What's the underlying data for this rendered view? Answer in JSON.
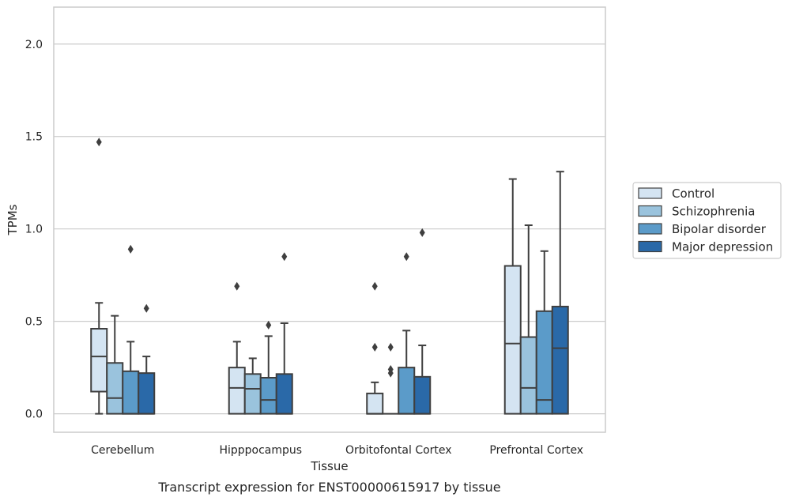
{
  "chart_data": {
    "type": "box",
    "xlabel": "Tissue",
    "ylabel": "TPMs",
    "caption": "Transcript expression for ENST00000615917 by tissue",
    "ylim": [
      -0.1,
      2.2
    ],
    "yticks": [
      "0.0",
      "0.5",
      "1.0",
      "1.5",
      "2.0"
    ],
    "ytick_values": [
      0,
      0.5,
      1.0,
      1.5,
      2.0
    ],
    "grid": "horizontal",
    "legend_position": "right",
    "categories": [
      "Cerebellum",
      "Hipppocampus",
      "Orbitofontal Cortex",
      "Prefrontal Cortex"
    ],
    "series": [
      {
        "name": "Control",
        "color": "#d4e4f2",
        "boxes": [
          {
            "whislo": 0.0,
            "q1": 0.12,
            "median": 0.31,
            "q3": 0.46,
            "whishi": 0.6,
            "fliers": [
              1.47
            ]
          },
          {
            "whislo": 0.0,
            "q1": 0.0,
            "median": 0.14,
            "q3": 0.25,
            "whishi": 0.39,
            "fliers": [
              0.69
            ]
          },
          {
            "whislo": 0.0,
            "q1": 0.0,
            "median": 0.0,
            "q3": 0.11,
            "whishi": 0.17,
            "fliers": [
              0.36,
              0.69
            ]
          },
          {
            "whislo": 0.0,
            "q1": 0.0,
            "median": 0.38,
            "q3": 0.8,
            "whishi": 1.27,
            "fliers": []
          }
        ]
      },
      {
        "name": "Schizophrenia",
        "color": "#9ac3dd",
        "boxes": [
          {
            "whislo": 0.0,
            "q1": 0.0,
            "median": 0.085,
            "q3": 0.275,
            "whishi": 0.53,
            "fliers": []
          },
          {
            "whislo": 0.0,
            "q1": 0.0,
            "median": 0.135,
            "q3": 0.215,
            "whishi": 0.3,
            "fliers": []
          },
          {
            "whislo": 0.0,
            "q1": 0.0,
            "median": 0.0,
            "q3": 0.0,
            "whishi": 0.0,
            "fliers": [
              0.22,
              0.24,
              0.36
            ]
          },
          {
            "whislo": 0.0,
            "q1": 0.0,
            "median": 0.14,
            "q3": 0.415,
            "whishi": 1.02,
            "fliers": []
          }
        ]
      },
      {
        "name": "Bipolar disorder",
        "color": "#5b9bc9",
        "boxes": [
          {
            "whislo": 0.0,
            "q1": 0.0,
            "median": 0.0,
            "q3": 0.23,
            "whishi": 0.39,
            "fliers": [
              0.89
            ]
          },
          {
            "whislo": 0.0,
            "q1": 0.0,
            "median": 0.075,
            "q3": 0.195,
            "whishi": 0.42,
            "fliers": [
              0.48
            ]
          },
          {
            "whislo": 0.0,
            "q1": 0.0,
            "median": 0.0,
            "q3": 0.25,
            "whishi": 0.45,
            "fliers": [
              0.85
            ]
          },
          {
            "whislo": 0.0,
            "q1": 0.0,
            "median": 0.075,
            "q3": 0.555,
            "whishi": 0.88,
            "fliers": []
          }
        ]
      },
      {
        "name": "Major depression",
        "color": "#2a69a8",
        "boxes": [
          {
            "whislo": 0.0,
            "q1": 0.0,
            "median": 0.0,
            "q3": 0.22,
            "whishi": 0.31,
            "fliers": [
              0.57
            ]
          },
          {
            "whislo": 0.0,
            "q1": 0.0,
            "median": 0.0,
            "q3": 0.215,
            "whishi": 0.49,
            "fliers": [
              0.85
            ]
          },
          {
            "whislo": 0.0,
            "q1": 0.0,
            "median": 0.0,
            "q3": 0.2,
            "whishi": 0.37,
            "fliers": [
              0.98
            ]
          },
          {
            "whislo": 0.0,
            "q1": 0.0,
            "median": 0.355,
            "q3": 0.58,
            "whishi": 1.31,
            "fliers": []
          }
        ]
      }
    ]
  }
}
